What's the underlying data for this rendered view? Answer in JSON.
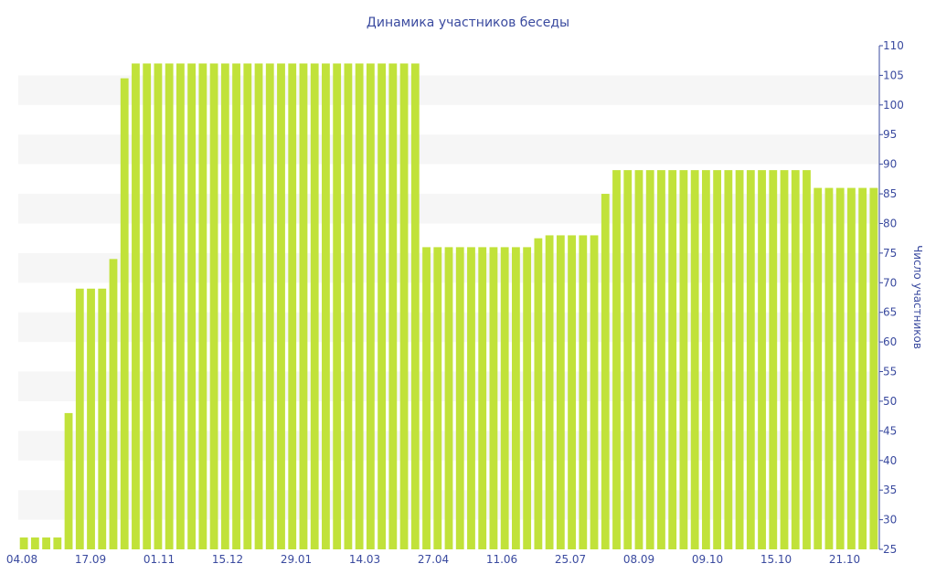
{
  "chart_data": {
    "type": "bar",
    "title": "Динамика участников беседы",
    "ylabel": "Число участников",
    "xlabel": "",
    "ylim": [
      25,
      110
    ],
    "y_ticks": [
      25,
      30,
      35,
      40,
      45,
      50,
      55,
      60,
      65,
      70,
      75,
      80,
      85,
      90,
      95,
      100,
      105,
      110
    ],
    "x_tick_labels": [
      "04.08",
      "17.09",
      "01.11",
      "15.12",
      "29.01",
      "14.03",
      "27.04",
      "11.06",
      "25.07",
      "08.09",
      "09.10",
      "15.10",
      "21.10"
    ],
    "values": [
      27,
      27,
      27,
      27,
      48,
      69,
      69,
      69,
      74,
      104.5,
      107,
      107,
      107,
      107,
      107,
      107,
      107,
      107,
      107,
      107,
      107,
      107,
      107,
      107,
      107,
      107,
      107,
      107,
      107,
      107,
      107,
      107,
      107,
      107,
      107,
      107,
      76,
      76,
      76,
      76,
      76,
      76,
      76,
      76,
      76,
      76,
      77.5,
      78,
      78,
      78,
      78,
      78,
      85,
      89,
      89,
      89,
      89,
      89,
      89,
      89,
      89,
      89,
      89,
      89,
      89,
      89,
      89,
      89,
      89,
      89,
      89,
      86,
      86,
      86,
      86,
      86,
      86
    ],
    "grid": "alternating horizontal bands",
    "y_axis_position": "right",
    "colors": {
      "bar": "#c1e23a",
      "text": "#3a4a9f",
      "band": "#f6f6f6"
    }
  }
}
